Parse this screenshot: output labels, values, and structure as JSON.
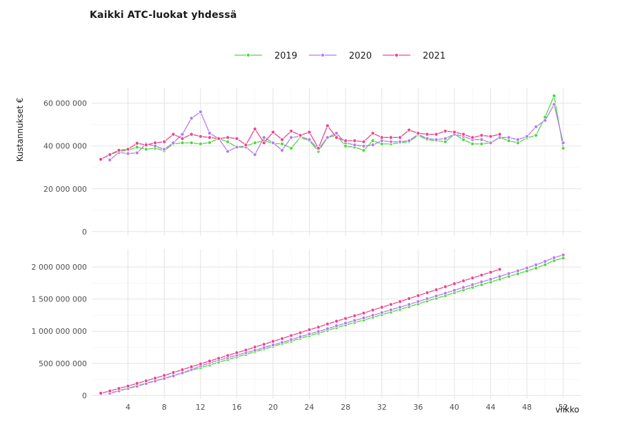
{
  "title": "Kaikki ATC-luokat yhdessä",
  "chart_data": {
    "type": "line",
    "title": "Kaikki ATC-luokat yhdessä",
    "xlabel": "viikko",
    "ylabel": "Kustannukset €",
    "legend_position": "top",
    "grid": true,
    "x_ticks": [
      4,
      8,
      12,
      16,
      20,
      24,
      28,
      32,
      36,
      40,
      44,
      48,
      52
    ],
    "xlim": [
      0,
      54
    ],
    "panels": [
      {
        "name": "weekly",
        "ylim": [
          -2000000,
          67000000
        ],
        "y_ticks": [
          0,
          20000000,
          40000000,
          60000000
        ],
        "y_tick_labels": [
          "0",
          "20 000 000",
          "40 000 000",
          "60 000 000"
        ],
        "series": [
          {
            "name": "2019",
            "color": "#4cd93a",
            "x": [
              2,
              3,
              4,
              5,
              6,
              7,
              8,
              9,
              10,
              11,
              12,
              13,
              14,
              15,
              16,
              17,
              18,
              19,
              20,
              21,
              22,
              23,
              24,
              25,
              26,
              27,
              28,
              29,
              30,
              31,
              32,
              33,
              34,
              35,
              36,
              37,
              38,
              39,
              40,
              41,
              42,
              43,
              44,
              45,
              46,
              47,
              48,
              49,
              50,
              51,
              52
            ],
            "y": [
              36.0,
              37.5,
              38.0,
              39.5,
              38.5,
              39.0,
              37.8,
              41.0,
              41.5,
              41.5,
              41.0,
              41.6,
              43.5,
              42.0,
              39.5,
              40.0,
              41.5,
              42.5,
              41.2,
              41.0,
              39.0,
              44.0,
              42.5,
              37.5,
              44.0,
              45.0,
              40.0,
              39.5,
              38.0,
              42.5,
              41.0,
              41.0,
              41.5,
              42.0,
              45.0,
              43.0,
              42.5,
              42.0,
              45.5,
              43.0,
              41.0,
              41.0,
              41.5,
              44.0,
              42.5,
              41.5,
              43.8,
              45.0,
              53.5,
              63.5,
              39.0
            ]
          },
          {
            "name": "2020",
            "color": "#b57bec",
            "x": [
              2,
              3,
              4,
              5,
              6,
              7,
              8,
              9,
              10,
              11,
              12,
              13,
              14,
              15,
              16,
              17,
              18,
              19,
              20,
              21,
              22,
              23,
              24,
              25,
              26,
              27,
              28,
              29,
              30,
              31,
              32,
              33,
              34,
              35,
              36,
              37,
              38,
              39,
              40,
              41,
              42,
              43,
              44,
              45,
              46,
              47,
              48,
              49,
              50,
              51,
              52
            ],
            "y": [
              33.5,
              37.0,
              36.5,
              36.8,
              41.0,
              40.0,
              38.5,
              41.5,
              45.5,
              53.0,
              56.0,
              46.0,
              43.5,
              37.5,
              39.5,
              39.5,
              36.0,
              44.0,
              41.5,
              38.0,
              44.0,
              44.5,
              43.0,
              38.5,
              44.0,
              46.0,
              41.5,
              40.5,
              40.0,
              40.5,
              42.5,
              42.0,
              42.0,
              42.5,
              45.5,
              43.5,
              43.0,
              43.5,
              45.5,
              44.5,
              43.0,
              43.0,
              41.5,
              44.0,
              44.0,
              43.0,
              44.5,
              49.0,
              52.0,
              59.5,
              41.5
            ]
          },
          {
            "name": "2021",
            "color": "#f0438f",
            "x": [
              1,
              2,
              3,
              4,
              5,
              6,
              7,
              8,
              9,
              10,
              11,
              12,
              13,
              14,
              15,
              16,
              17,
              18,
              19,
              20,
              21,
              22,
              23,
              24,
              25,
              26,
              27,
              28,
              29,
              30,
              31,
              32,
              33,
              34,
              35,
              36,
              37,
              38,
              39,
              40,
              41,
              42,
              43,
              44,
              45
            ],
            "y": [
              33.8,
              36.0,
              38.0,
              38.5,
              41.3,
              40.5,
              41.5,
              42.0,
              45.5,
              43.5,
              45.5,
              44.5,
              44.0,
              43.5,
              44.0,
              43.5,
              40.5,
              48.0,
              41.5,
              46.5,
              43.0,
              47.0,
              45.0,
              46.5,
              39.0,
              49.5,
              44.0,
              42.5,
              42.5,
              42.0,
              46.0,
              44.0,
              44.0,
              44.0,
              47.5,
              46.0,
              45.5,
              45.5,
              47.0,
              46.5,
              45.5,
              44.0,
              45.0,
              44.5,
              45.5
            ]
          }
        ]
      },
      {
        "name": "cumulative",
        "ylim": [
          -50000000,
          2280000000
        ],
        "y_ticks": [
          0,
          500000000,
          1000000000,
          1500000000,
          2000000000
        ],
        "y_tick_labels": [
          "0",
          "500 000 000",
          "1 000 000 000",
          "1 500 000 000",
          "2 000 000 000"
        ],
        "series": [
          {
            "name": "2019",
            "color": "#4cd93a",
            "cumulative_of": "2019",
            "start_week": 2,
            "start_value": 36000000
          },
          {
            "name": "2020",
            "color": "#b57bec",
            "cumulative_of": "2020",
            "start_week": 2,
            "start_value": 33500000
          },
          {
            "name": "2021",
            "color": "#f0438f",
            "cumulative_of": "2021",
            "start_week": 1,
            "start_value": 33800000
          }
        ]
      }
    ],
    "value_unit_multiplier_weekly": 1000000
  }
}
